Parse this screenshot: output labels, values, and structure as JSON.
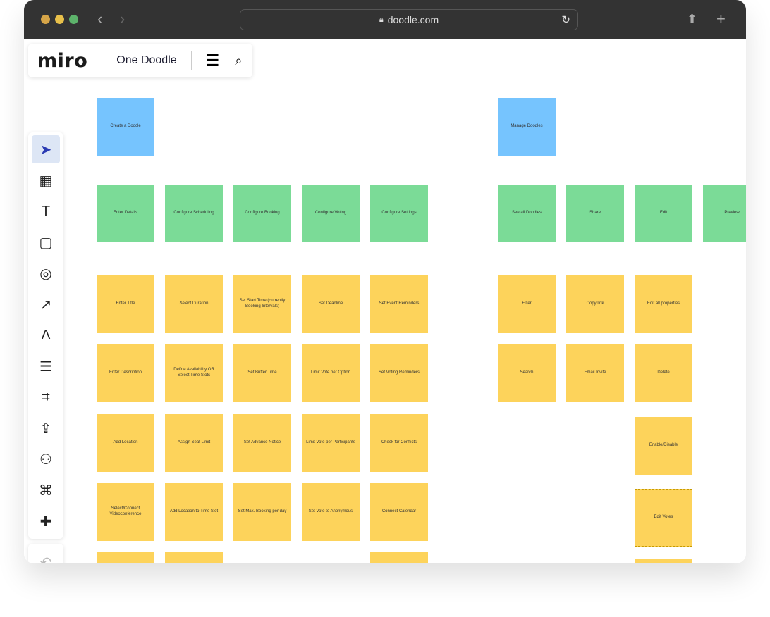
{
  "browser": {
    "url": "doodle.com",
    "colors": {
      "close": "#d6a548",
      "min": "#e8c04a",
      "max": "#5db36b"
    }
  },
  "header": {
    "logo": "miro",
    "board_title": "One Doodle"
  },
  "toolbar": [
    "select",
    "templates",
    "text",
    "sticky-note",
    "shapes",
    "arrow",
    "pen",
    "comment",
    "frame",
    "upload",
    "more-apps",
    "mind-map",
    "add"
  ],
  "colors": {
    "blue": "#76c4fe",
    "green": "#7bdb97",
    "yellow": "#fdd35b"
  },
  "notes": {
    "left": {
      "header": "Create a Doocle",
      "columns": [
        {
          "title": "Enter Details",
          "items": [
            "Enter Title",
            "Enter Description",
            "Add Location",
            "Select/Connect Videoconference",
            ""
          ]
        },
        {
          "title": "Configure Scheduling",
          "items": [
            "Select Duration",
            "Define Availability OR Select Time Slots",
            "Assign Seat Limit",
            "Add Location to Time Slot",
            ""
          ]
        },
        {
          "title": "Configure Booking",
          "items": [
            "Set Start Time (currently Booking Intervals)",
            "Set Buffer Time",
            "Set Advance Notice",
            "Set Max. Booking per day"
          ]
        },
        {
          "title": "Configure Voting",
          "items": [
            "Set Deadline",
            "Limit Vote per Option",
            "Limit Vote per Participants",
            "Set Vote to Anonymous"
          ]
        },
        {
          "title": "Configure Settings",
          "items": [
            "Set Event Reminders",
            "Set Voting Reminders",
            "Check for Conflicts",
            "Connect Calendar",
            ""
          ]
        }
      ]
    },
    "right": {
      "header": "Manage Doodles",
      "columns": [
        {
          "title": "See all Doodles",
          "items": [
            "Filter",
            "Search"
          ]
        },
        {
          "title": "Share",
          "items": [
            "Copy link",
            "Email Invite"
          ]
        },
        {
          "title": "Edit",
          "items": [
            "Edit all properties",
            "Delete",
            "Enable/Disable",
            "Edit Votes",
            ""
          ]
        },
        {
          "title": "Preview",
          "items": []
        }
      ]
    }
  }
}
